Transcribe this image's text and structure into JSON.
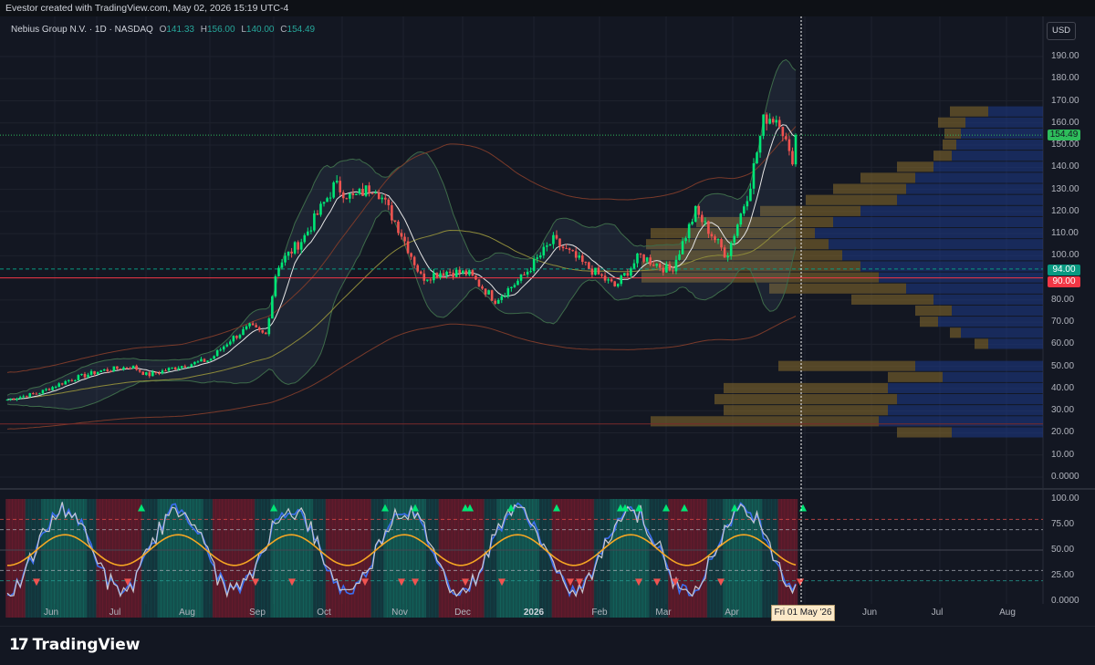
{
  "header": {
    "credit": "Evestor created with TradingView.com, May 02, 2026 15:19 UTC-4"
  },
  "legend": {
    "symbol": "Nebius Group N.V. · 1D · NASDAQ",
    "o_label": "O",
    "open": "141.33",
    "h_label": "H",
    "high": "156.00",
    "l_label": "L",
    "low": "140.00",
    "c_label": "C",
    "close": "154.49"
  },
  "currency": "USD",
  "price_axis": [
    {
      "label": "190.00",
      "value": 190
    },
    {
      "label": "180.00",
      "value": 180
    },
    {
      "label": "170.00",
      "value": 170
    },
    {
      "label": "160.00",
      "value": 160
    },
    {
      "label": "150.00",
      "value": 150
    },
    {
      "label": "140.00",
      "value": 140
    },
    {
      "label": "130.00",
      "value": 130
    },
    {
      "label": "120.00",
      "value": 120
    },
    {
      "label": "110.00",
      "value": 110
    },
    {
      "label": "100.00",
      "value": 100
    },
    {
      "label": "80.00",
      "value": 80
    },
    {
      "label": "70.00",
      "value": 70
    },
    {
      "label": "60.00",
      "value": 60
    },
    {
      "label": "50.00",
      "value": 50
    },
    {
      "label": "40.00",
      "value": 40
    },
    {
      "label": "30.00",
      "value": 30
    },
    {
      "label": "20.00",
      "value": 20
    },
    {
      "label": "10.00",
      "value": 10
    },
    {
      "label": "0.0000",
      "value": 0
    }
  ],
  "price_tags": {
    "last": "154.49",
    "upper": "94.00",
    "lower": "90.00"
  },
  "osc_axis": [
    {
      "label": "100.00",
      "value": 100
    },
    {
      "label": "75.00",
      "value": 75
    },
    {
      "label": "50.00",
      "value": 50
    },
    {
      "label": "25.00",
      "value": 25
    },
    {
      "label": "0.0000",
      "value": 0
    }
  ],
  "time_axis": [
    "Jun",
    "Jul",
    "Aug",
    "Sep",
    "Oct",
    "Nov",
    "Dec",
    "2026",
    "Feb",
    "Mar",
    "Apr",
    "Jun",
    "Jul",
    "Aug"
  ],
  "crosshair_date": "Fri 01 May '26",
  "brand": {
    "logo": "17",
    "name": "TradingView"
  },
  "colors": {
    "up": "#26a69a",
    "candle_up": "#00e676",
    "down": "#ef5350",
    "background": "#131722",
    "grid": "#1e222d",
    "vp_up": "#8a6d2b",
    "vp_down": "#1e3a8a",
    "tag_green": "#089981",
    "tag_red": "#f23645"
  },
  "chart_data": {
    "type": "candlestick",
    "symbol": "Nebius Group N.V.",
    "interval": "1D",
    "exchange": "NASDAQ",
    "close_series": [
      {
        "date": "2025-05-12",
        "close": 35
      },
      {
        "date": "2025-05-26",
        "close": 38
      },
      {
        "date": "2025-06-09",
        "close": 44
      },
      {
        "date": "2025-06-23",
        "close": 48
      },
      {
        "date": "2025-07-07",
        "close": 50
      },
      {
        "date": "2025-07-14",
        "close": 46
      },
      {
        "date": "2025-07-28",
        "close": 50
      },
      {
        "date": "2025-08-11",
        "close": 53
      },
      {
        "date": "2025-08-20",
        "close": 62
      },
      {
        "date": "2025-08-29",
        "close": 68
      },
      {
        "date": "2025-09-05",
        "close": 64
      },
      {
        "date": "2025-09-10",
        "close": 95
      },
      {
        "date": "2025-09-22",
        "close": 108
      },
      {
        "date": "2025-10-06",
        "close": 132
      },
      {
        "date": "2025-10-14",
        "close": 126
      },
      {
        "date": "2025-10-24",
        "close": 132
      },
      {
        "date": "2025-11-04",
        "close": 112
      },
      {
        "date": "2025-11-14",
        "close": 90
      },
      {
        "date": "2025-11-24",
        "close": 93
      },
      {
        "date": "2025-12-05",
        "close": 92
      },
      {
        "date": "2025-12-17",
        "close": 80
      },
      {
        "date": "2025-12-29",
        "close": 90
      },
      {
        "date": "2026-01-12",
        "close": 107
      },
      {
        "date": "2026-01-26",
        "close": 96
      },
      {
        "date": "2026-02-09",
        "close": 86
      },
      {
        "date": "2026-02-20",
        "close": 100
      },
      {
        "date": "2026-03-06",
        "close": 93
      },
      {
        "date": "2026-03-17",
        "close": 120
      },
      {
        "date": "2026-03-31",
        "close": 100
      },
      {
        "date": "2026-04-10",
        "close": 130
      },
      {
        "date": "2026-04-17",
        "close": 163
      },
      {
        "date": "2026-04-24",
        "close": 162
      },
      {
        "date": "2026-04-29",
        "close": 141
      },
      {
        "date": "2026-05-01",
        "close": 154.49
      }
    ],
    "last": {
      "open": 141.33,
      "high": 156.0,
      "low": 140.0,
      "close": 154.49
    },
    "horizontal_levels": [
      94,
      90,
      24
    ],
    "y_range": [
      0,
      195
    ],
    "oscillator": {
      "range": [
        0,
        100
      ],
      "levels": [
        80,
        70,
        30,
        20
      ]
    },
    "volume_profile": "right side, buy (gold) / sell (blue)"
  }
}
